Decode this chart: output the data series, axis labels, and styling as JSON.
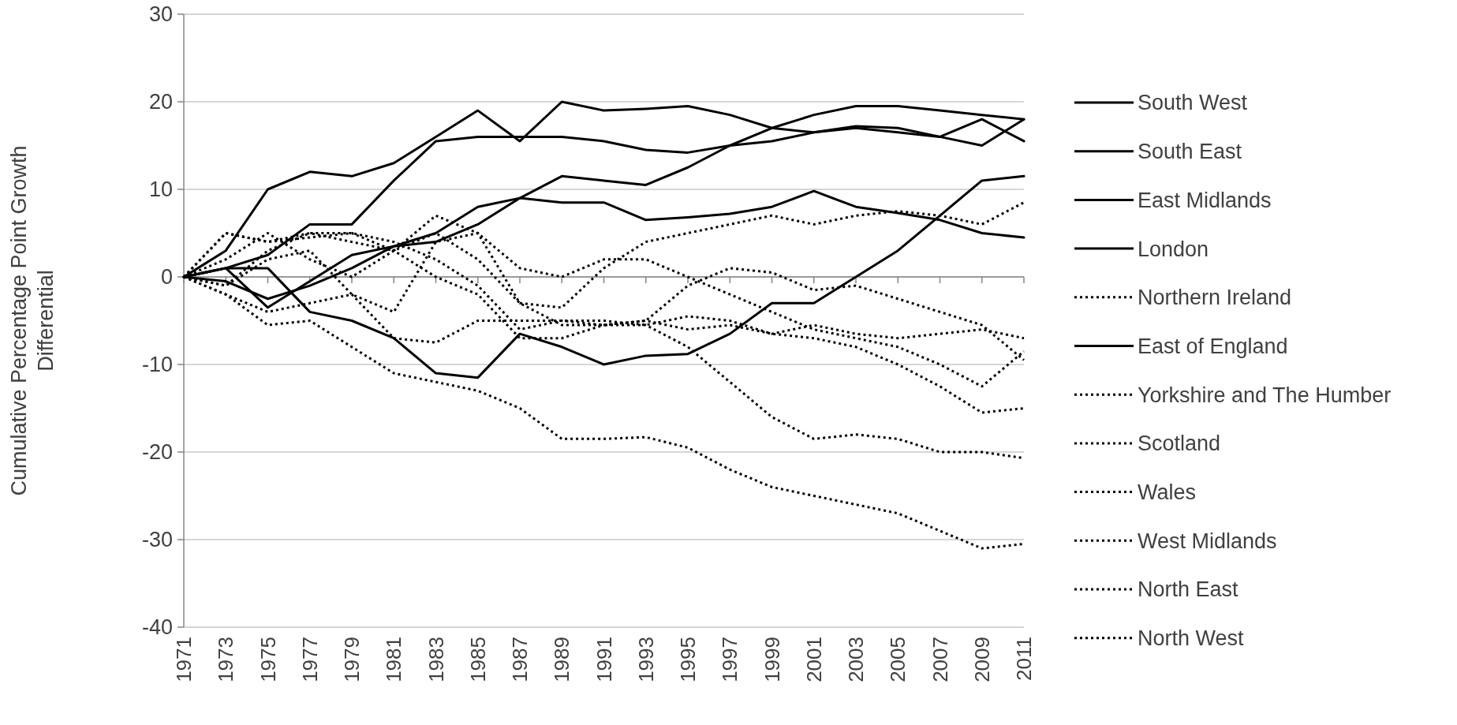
{
  "chart_data": {
    "type": "line",
    "ylabel": "Cumulative Percentage Point Growth Differential",
    "x": [
      1971,
      1973,
      1975,
      1977,
      1979,
      1981,
      1983,
      1985,
      1987,
      1989,
      1991,
      1993,
      1995,
      1997,
      1999,
      2001,
      2003,
      2005,
      2007,
      2009,
      2011
    ],
    "xlim": [
      1971,
      2011
    ],
    "xticks": [
      1971,
      1973,
      1975,
      1977,
      1979,
      1981,
      1983,
      1985,
      1987,
      1989,
      1991,
      1993,
      1995,
      1997,
      1999,
      2001,
      2003,
      2005,
      2007,
      2009,
      2011
    ],
    "ylim": [
      -40,
      30
    ],
    "yticks": [
      -40,
      -30,
      -20,
      -10,
      0,
      10,
      20,
      30
    ],
    "grid": "y",
    "legend": "right",
    "series": [
      {
        "name": "South West",
        "color": "#000000",
        "line_style": "solid",
        "values": [
          0,
          3,
          10,
          12,
          11.5,
          13,
          16,
          19,
          15.5,
          20,
          19,
          19.2,
          19.5,
          18.5,
          17,
          16.5,
          17.2,
          17,
          16,
          18,
          15.5
        ]
      },
      {
        "name": "South East",
        "color": "#000000",
        "line_style": "solid",
        "values": [
          0,
          1,
          2.5,
          6,
          6,
          11,
          15.5,
          16,
          16,
          16,
          15.5,
          14.5,
          14.2,
          15,
          15.5,
          16.5,
          17,
          16.5,
          16,
          15,
          18
        ]
      },
      {
        "name": "East Midlands",
        "color": "#000000",
        "line_style": "solid",
        "values": [
          0,
          1,
          -3.5,
          -0.5,
          2.5,
          3.5,
          4,
          6,
          9,
          11.5,
          11,
          10.5,
          12.5,
          15,
          17,
          18.5,
          19.5,
          19.5,
          19,
          18.5,
          18
        ]
      },
      {
        "name": "London",
        "color": "#000000",
        "line_style": "solid",
        "values": [
          0,
          -0.5,
          -2.5,
          -1,
          1,
          3.5,
          5,
          8,
          9,
          8.5,
          8.5,
          6.5,
          6.8,
          7.2,
          8,
          9.8,
          8,
          7.3,
          6.5,
          5,
          4.5
        ]
      },
      {
        "name": "Northern Ireland",
        "color": "#000000",
        "line_style": "dotted",
        "values": [
          0,
          5,
          4,
          5,
          4,
          3,
          7,
          5,
          -3,
          -3.5,
          1,
          4,
          5,
          6,
          7,
          6,
          7,
          7.5,
          7,
          6,
          8.5
        ]
      },
      {
        "name": "East of England",
        "color": "#000000",
        "line_style": "solid",
        "values": [
          0,
          1,
          1,
          -4,
          -5,
          -7,
          -11,
          -11.5,
          -6.5,
          -8,
          -10,
          -9,
          -8.8,
          -6.5,
          -3,
          -3,
          0,
          3,
          7,
          11,
          11.5
        ]
      },
      {
        "name": "Yorkshire and The Humber",
        "color": "#000000",
        "line_style": "dotted",
        "values": [
          0,
          -1,
          3,
          5,
          5,
          4,
          2,
          -1,
          -6,
          -5,
          -5.5,
          -5,
          -6,
          -5.5,
          -6.5,
          -7,
          -8,
          -10,
          -12.5,
          -15.5,
          -15
        ]
      },
      {
        "name": "Scotland",
        "color": "#000000",
        "line_style": "dotted",
        "values": [
          0,
          -1,
          2,
          3,
          -2,
          -4,
          4,
          5,
          1,
          0,
          2,
          2,
          0,
          -2,
          -4,
          -6,
          -7,
          -8,
          -10,
          -12.5,
          -8.5
        ]
      },
      {
        "name": "Wales",
        "color": "#000000",
        "line_style": "dotted",
        "values": [
          0,
          -2,
          -4,
          -3,
          -2,
          -7,
          -7.5,
          -5,
          -5,
          -5,
          -5,
          -5.5,
          -4.5,
          -5,
          -6.5,
          -5.5,
          -6.5,
          -7,
          -6.5,
          -6,
          -7
        ]
      },
      {
        "name": "West Midlands",
        "color": "#000000",
        "line_style": "dotted",
        "values": [
          0,
          5,
          4,
          4.5,
          5,
          3,
          0,
          -2,
          -7,
          -7,
          -5.5,
          -5,
          -1,
          1,
          0.5,
          -1.5,
          -1,
          -2.5,
          -4,
          -5.5,
          -9.5
        ]
      },
      {
        "name": "North East",
        "color": "#000000",
        "line_style": "dotted",
        "values": [
          0,
          2,
          5,
          2,
          0,
          3,
          5,
          2,
          -3,
          -5.5,
          -5.5,
          -5.5,
          -8,
          -12,
          -16,
          -18.5,
          -18,
          -18.5,
          -20,
          -20,
          -20.7
        ]
      },
      {
        "name": "North West",
        "color": "#000000",
        "line_style": "dotted",
        "values": [
          0,
          -2,
          -5.5,
          -5,
          -8,
          -11,
          -12,
          -13,
          -15,
          -18.5,
          -18.5,
          -18.3,
          -19.5,
          -22,
          -24,
          -25,
          -26,
          -27,
          -29,
          -31,
          -30.5
        ]
      }
    ]
  }
}
